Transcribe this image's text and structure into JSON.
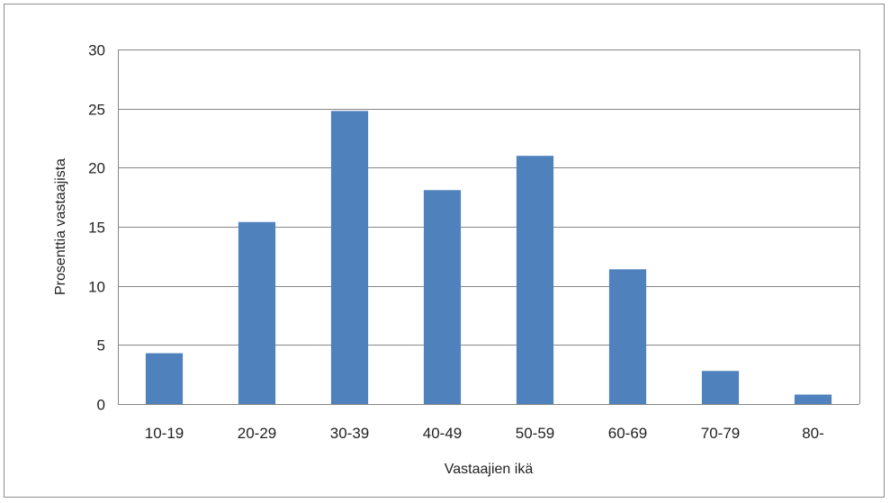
{
  "chart_data": {
    "type": "bar",
    "title": "",
    "xlabel": "Vastaajien ikä",
    "ylabel": "Prosenttia vastaajista",
    "categories": [
      "10-19",
      "20-29",
      "30-39",
      "40-49",
      "50-59",
      "60-69",
      "70-79",
      "80-"
    ],
    "values": [
      4.3,
      15.4,
      24.8,
      18.1,
      21.0,
      11.4,
      2.8,
      0.8
    ],
    "ylim": [
      0,
      30
    ],
    "yticks": [
      0,
      5,
      10,
      15,
      20,
      25,
      30
    ],
    "grid": true,
    "legend": "none",
    "bar_color": "#4F81BD",
    "gridline_color": "#868686"
  }
}
